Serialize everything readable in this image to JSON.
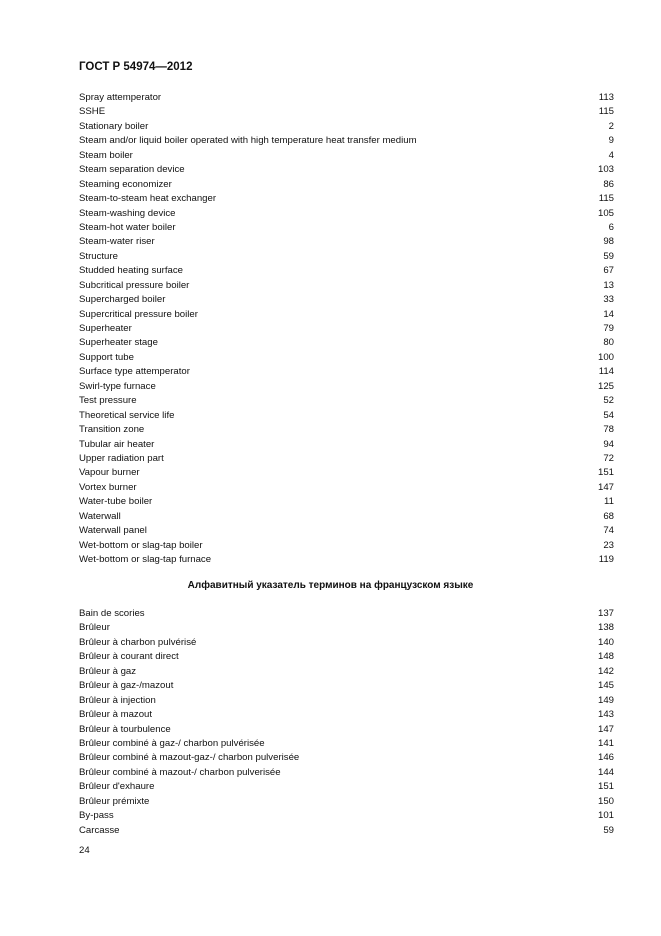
{
  "header": "ГОСТ Р 54974—2012",
  "english_entries": [
    {
      "term": "Spray attemperator",
      "page": "113"
    },
    {
      "term": "SSHE",
      "page": "115"
    },
    {
      "term": "Stationary boiler",
      "page": "2"
    },
    {
      "term": "Steam and/or liquid boiler operated with high temperature heat transfer medium",
      "page": "9"
    },
    {
      "term": "Steam boiler",
      "page": "4"
    },
    {
      "term": "Steam separation device",
      "page": "103"
    },
    {
      "term": "Steaming economizer",
      "page": "86"
    },
    {
      "term": "Steam-to-steam heat exchanger",
      "page": "115"
    },
    {
      "term": "Steam-washing device",
      "page": "105"
    },
    {
      "term": "Steam-hot water boiler",
      "page": "6"
    },
    {
      "term": "Steam-water riser",
      "page": "98"
    },
    {
      "term": "Structure",
      "page": "59"
    },
    {
      "term": "Studded heating surface",
      "page": "67"
    },
    {
      "term": "Subcritical pressure boiler",
      "page": "13"
    },
    {
      "term": "Supercharged boiler",
      "page": "33"
    },
    {
      "term": "Supercritical pressure boiler",
      "page": "14"
    },
    {
      "term": "Superheater",
      "page": "79"
    },
    {
      "term": "Superheater stage",
      "page": "80"
    },
    {
      "term": "Support tube",
      "page": "100"
    },
    {
      "term": "Surface type attemperator",
      "page": "114"
    },
    {
      "term": "Swirl-type furnace",
      "page": "125"
    },
    {
      "term": "Test pressure",
      "page": "52"
    },
    {
      "term": "Theoretical service life",
      "page": "54"
    },
    {
      "term": "Transition zone",
      "page": "78"
    },
    {
      "term": "Tubular air heater",
      "page": "94"
    },
    {
      "term": "Upper radiation part",
      "page": "72"
    },
    {
      "term": "Vapour burner",
      "page": "151"
    },
    {
      "term": "Vortex burner",
      "page": "147"
    },
    {
      "term": "Water-tube boiler",
      "page": "11"
    },
    {
      "term": "Waterwall",
      "page": "68"
    },
    {
      "term": "Waterwall panel",
      "page": "74"
    },
    {
      "term": "Wet-bottom or slag-tap boiler",
      "page": "23"
    },
    {
      "term": "Wet-bottom or slag-tap furnace",
      "page": "119"
    }
  ],
  "french_section_title": "Алфавитный указатель терминов на французском языке",
  "french_entries": [
    {
      "term": "Bain de scories",
      "page": "137"
    },
    {
      "term": "Brûleur",
      "page": "138"
    },
    {
      "term": "Brûleur à charbon pulvérisé",
      "page": "140"
    },
    {
      "term": "Brûleur à courant direct",
      "page": "148"
    },
    {
      "term": "Brûleur à gaz",
      "page": "142"
    },
    {
      "term": "Brûleur à gaz-/mazout",
      "page": "145"
    },
    {
      "term": "Brûleur à injection",
      "page": "149"
    },
    {
      "term": "Brûleur à mazout",
      "page": "143"
    },
    {
      "term": "Brûleur à tourbulence",
      "page": "147"
    },
    {
      "term": "Brûleur combiné à gaz-/ charbon pulvérisée",
      "page": "141"
    },
    {
      "term": "Brûleur combiné à mazout-gaz-/ charbon pulverisée",
      "page": "146"
    },
    {
      "term": "Brûleur combiné à mazout-/ charbon pulverisée",
      "page": "144"
    },
    {
      "term": "Brûleur d'exhaure",
      "page": "151"
    },
    {
      "term": "Brûleur prémixte",
      "page": "150"
    },
    {
      "term": "By-pass",
      "page": "101"
    },
    {
      "term": "Carcasse",
      "page": "59"
    }
  ],
  "page_number": "24"
}
